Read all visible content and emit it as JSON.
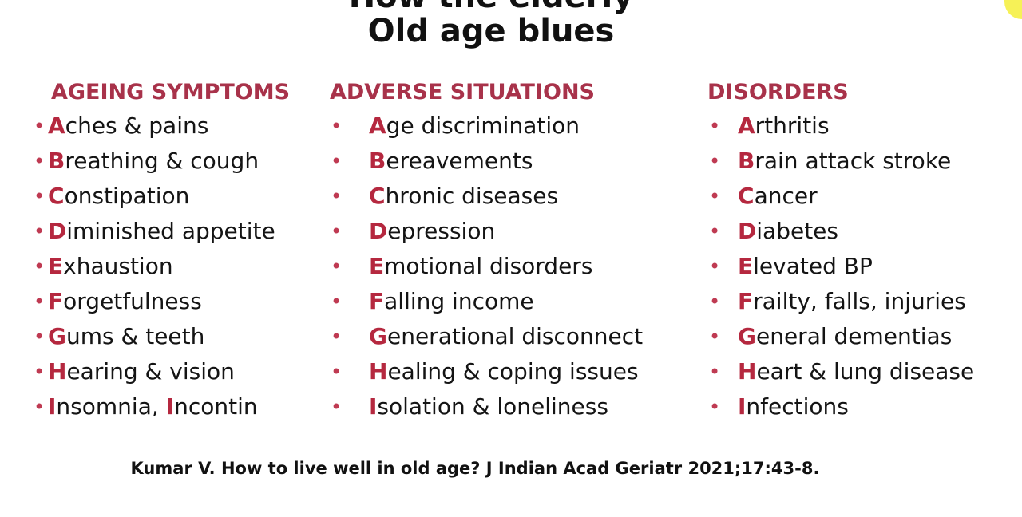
{
  "slide": {
    "title_partial": "How the elderly",
    "title": "Old age blues",
    "citation": "Kumar V. How to live well in old age? J Indian Acad Geriatr 2021;17:43-8."
  },
  "colors": {
    "heading": "#a8324a",
    "initial_letter": "#b5283f",
    "bullet": "#bf3a52",
    "corner_accent": "#f4ee3a"
  },
  "columns": [
    {
      "heading": "AGEING SYMPTOMS",
      "items": [
        {
          "initial": "A",
          "rest": "ches & pains"
        },
        {
          "initial": "B",
          "rest": "reathing & cough"
        },
        {
          "initial": "C",
          "rest": "onstipation"
        },
        {
          "initial": "D",
          "rest": "iminished appetite"
        },
        {
          "initial": "E",
          "rest": "xhaustion"
        },
        {
          "initial": "F",
          "rest": "orgetfulness"
        },
        {
          "initial": "G",
          "rest": "ums & teeth"
        },
        {
          "initial": "H",
          "rest": "earing & vision"
        },
        {
          "initial": "I",
          "rest": "nsomnia, ",
          "initial2": "I",
          "rest2": "ncontin"
        }
      ]
    },
    {
      "heading": "ADVERSE SITUATIONS",
      "items": [
        {
          "initial": "A",
          "rest": "ge discrimination"
        },
        {
          "initial": "B",
          "rest": "ereavements"
        },
        {
          "initial": "C",
          "rest": "hronic diseases"
        },
        {
          "initial": "D",
          "rest": "epression"
        },
        {
          "initial": "E",
          "rest": "motional disorders"
        },
        {
          "initial": "F",
          "rest": "alling income"
        },
        {
          "initial": "G",
          "rest": "enerational disconnect"
        },
        {
          "initial": "H",
          "rest": "ealing & coping issues"
        },
        {
          "initial": "I",
          "rest": "solation & loneliness"
        }
      ]
    },
    {
      "heading": "DISORDERS",
      "items": [
        {
          "initial": "A",
          "rest": "rthritis"
        },
        {
          "initial": "B",
          "rest": "rain attack stroke"
        },
        {
          "initial": "C",
          "rest": "ancer"
        },
        {
          "initial": "D",
          "rest": "iabetes"
        },
        {
          "initial": "E",
          "rest": "levated BP"
        },
        {
          "initial": "F",
          "rest": "railty, falls, injuries"
        },
        {
          "initial": "G",
          "rest": "eneral dementias"
        },
        {
          "initial": "H",
          "rest": "eart & lung disease"
        },
        {
          "initial": "I",
          "rest": "nfections"
        }
      ]
    }
  ]
}
